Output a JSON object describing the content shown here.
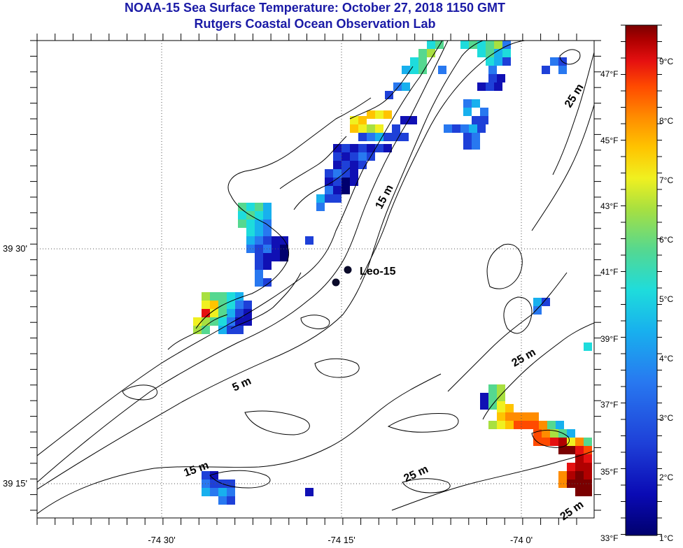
{
  "title": "NOAA-15 Sea Surface Temperature:  October 27, 2018 1150 GMT",
  "subtitle": "Rutgers Coastal Ocean Observation Lab",
  "axes": {
    "lon_labels": [
      "-74 30'",
      "-74 15'",
      "-74 0'"
    ],
    "lat_labels": [
      "39 30'",
      "39 15'"
    ]
  },
  "station": {
    "label": "Leo-15"
  },
  "depth_labels": [
    "25 m",
    "15 m",
    "25 m",
    "5 m",
    "15 m",
    "25 m",
    "25 m"
  ],
  "colorbar": {
    "fahrenheit": [
      "47°F",
      "45°F",
      "43°F",
      "41°F",
      "39°F",
      "37°F",
      "35°F",
      "33°F"
    ],
    "celsius": [
      "9°C",
      "8°C",
      "7°C",
      "6°C",
      "5°C",
      "4°C",
      "3°C",
      "2°C",
      "1°C"
    ],
    "colors": [
      "#7a0000",
      "#b00000",
      "#e51010",
      "#ff4a00",
      "#ff8c00",
      "#ffc400",
      "#f0f020",
      "#a8e040",
      "#55d890",
      "#1edcdc",
      "#18b0ee",
      "#2878f0",
      "#1e40d8",
      "#1010b4",
      "#00006e"
    ]
  }
}
